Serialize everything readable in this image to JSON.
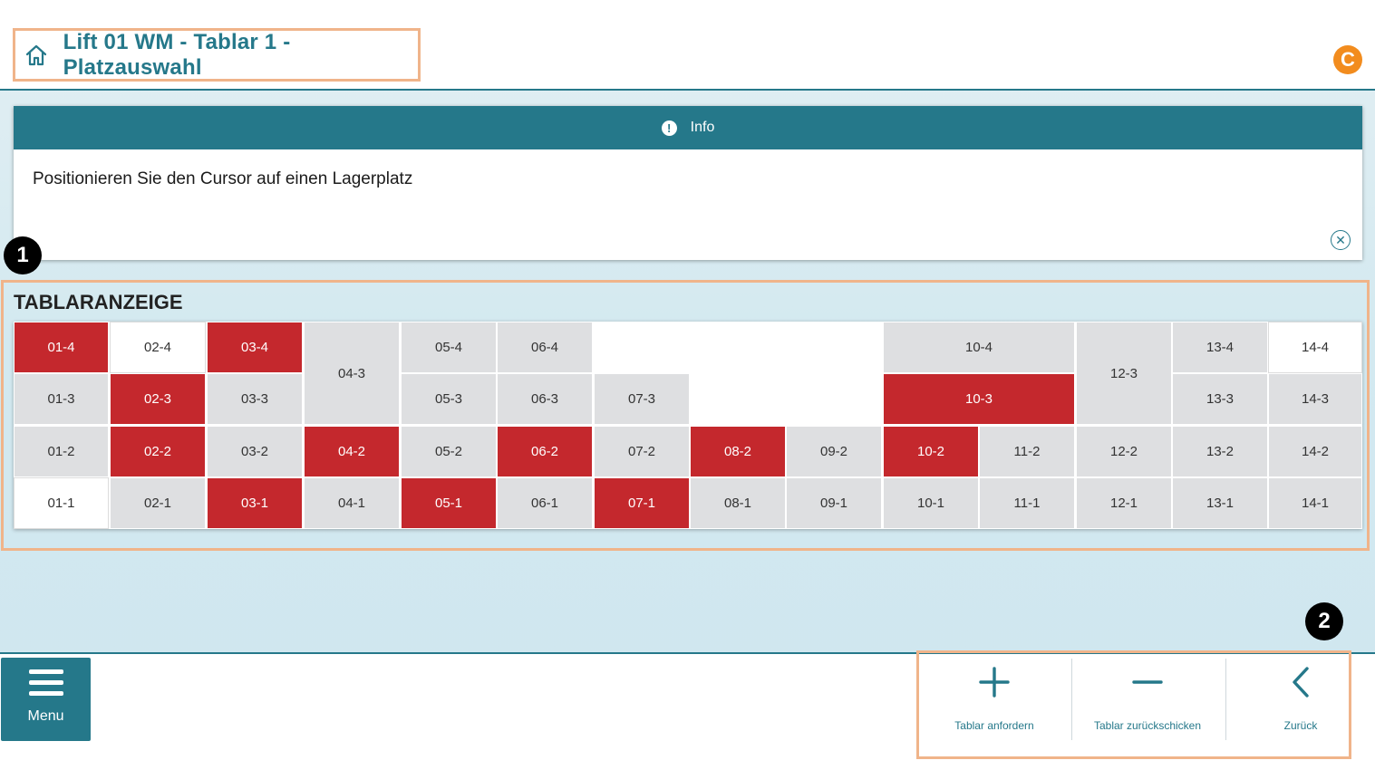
{
  "header": {
    "title": "Lift 01 WM - Tablar 1 - Platzauswahl",
    "home_icon": "home-icon",
    "brand_logo": "C"
  },
  "info": {
    "title": "Info",
    "message": "Positionieren Sie den Cursor auf einen Lagerplatz",
    "close_icon": "close-circle-icon"
  },
  "badges": [
    "1",
    "2"
  ],
  "tray": {
    "title": "TABLARANZEIGE",
    "colors": {
      "occupied": "#c4282d",
      "free": "#dedfe1",
      "empty": "#ffffff"
    },
    "slots": [
      {
        "label": "01-4",
        "state": "occupied"
      },
      {
        "label": "02-4",
        "state": "empty"
      },
      {
        "label": "03-4",
        "state": "occupied"
      },
      {
        "label": "04-3",
        "state": "free"
      },
      {
        "label": "05-4",
        "state": "free"
      },
      {
        "label": "06-4",
        "state": "free"
      },
      {
        "label": "10-4",
        "state": "free"
      },
      {
        "label": "12-3",
        "state": "free"
      },
      {
        "label": "13-4",
        "state": "free"
      },
      {
        "label": "14-4",
        "state": "empty"
      },
      {
        "label": "01-3",
        "state": "free"
      },
      {
        "label": "02-3",
        "state": "occupied"
      },
      {
        "label": "03-3",
        "state": "free"
      },
      {
        "label": "05-3",
        "state": "free"
      },
      {
        "label": "06-3",
        "state": "free"
      },
      {
        "label": "07-3",
        "state": "free"
      },
      {
        "label": "10-3",
        "state": "occupied"
      },
      {
        "label": "13-3",
        "state": "free"
      },
      {
        "label": "14-3",
        "state": "free"
      },
      {
        "label": "01-2",
        "state": "free"
      },
      {
        "label": "02-2",
        "state": "occupied"
      },
      {
        "label": "03-2",
        "state": "free"
      },
      {
        "label": "04-2",
        "state": "occupied"
      },
      {
        "label": "05-2",
        "state": "free"
      },
      {
        "label": "06-2",
        "state": "occupied"
      },
      {
        "label": "07-2",
        "state": "free"
      },
      {
        "label": "08-2",
        "state": "occupied"
      },
      {
        "label": "09-2",
        "state": "free"
      },
      {
        "label": "10-2",
        "state": "occupied"
      },
      {
        "label": "11-2",
        "state": "free"
      },
      {
        "label": "12-2",
        "state": "free"
      },
      {
        "label": "13-2",
        "state": "free"
      },
      {
        "label": "14-2",
        "state": "free"
      },
      {
        "label": "01-1",
        "state": "empty"
      },
      {
        "label": "02-1",
        "state": "free"
      },
      {
        "label": "03-1",
        "state": "occupied"
      },
      {
        "label": "04-1",
        "state": "free"
      },
      {
        "label": "05-1",
        "state": "occupied"
      },
      {
        "label": "06-1",
        "state": "free"
      },
      {
        "label": "07-1",
        "state": "occupied"
      },
      {
        "label": "08-1",
        "state": "free"
      },
      {
        "label": "09-1",
        "state": "free"
      },
      {
        "label": "10-1",
        "state": "free"
      },
      {
        "label": "11-1",
        "state": "free"
      },
      {
        "label": "12-1",
        "state": "free"
      },
      {
        "label": "13-1",
        "state": "free"
      },
      {
        "label": "14-1",
        "state": "free"
      }
    ]
  },
  "footer": {
    "menu_label": "Menu",
    "actions": [
      {
        "label": "Tablar anfordern",
        "icon": "plus-icon"
      },
      {
        "label": "Tablar zurückschicken",
        "icon": "minus-icon"
      },
      {
        "label": "Zurück",
        "icon": "chevron-left-icon"
      }
    ]
  }
}
